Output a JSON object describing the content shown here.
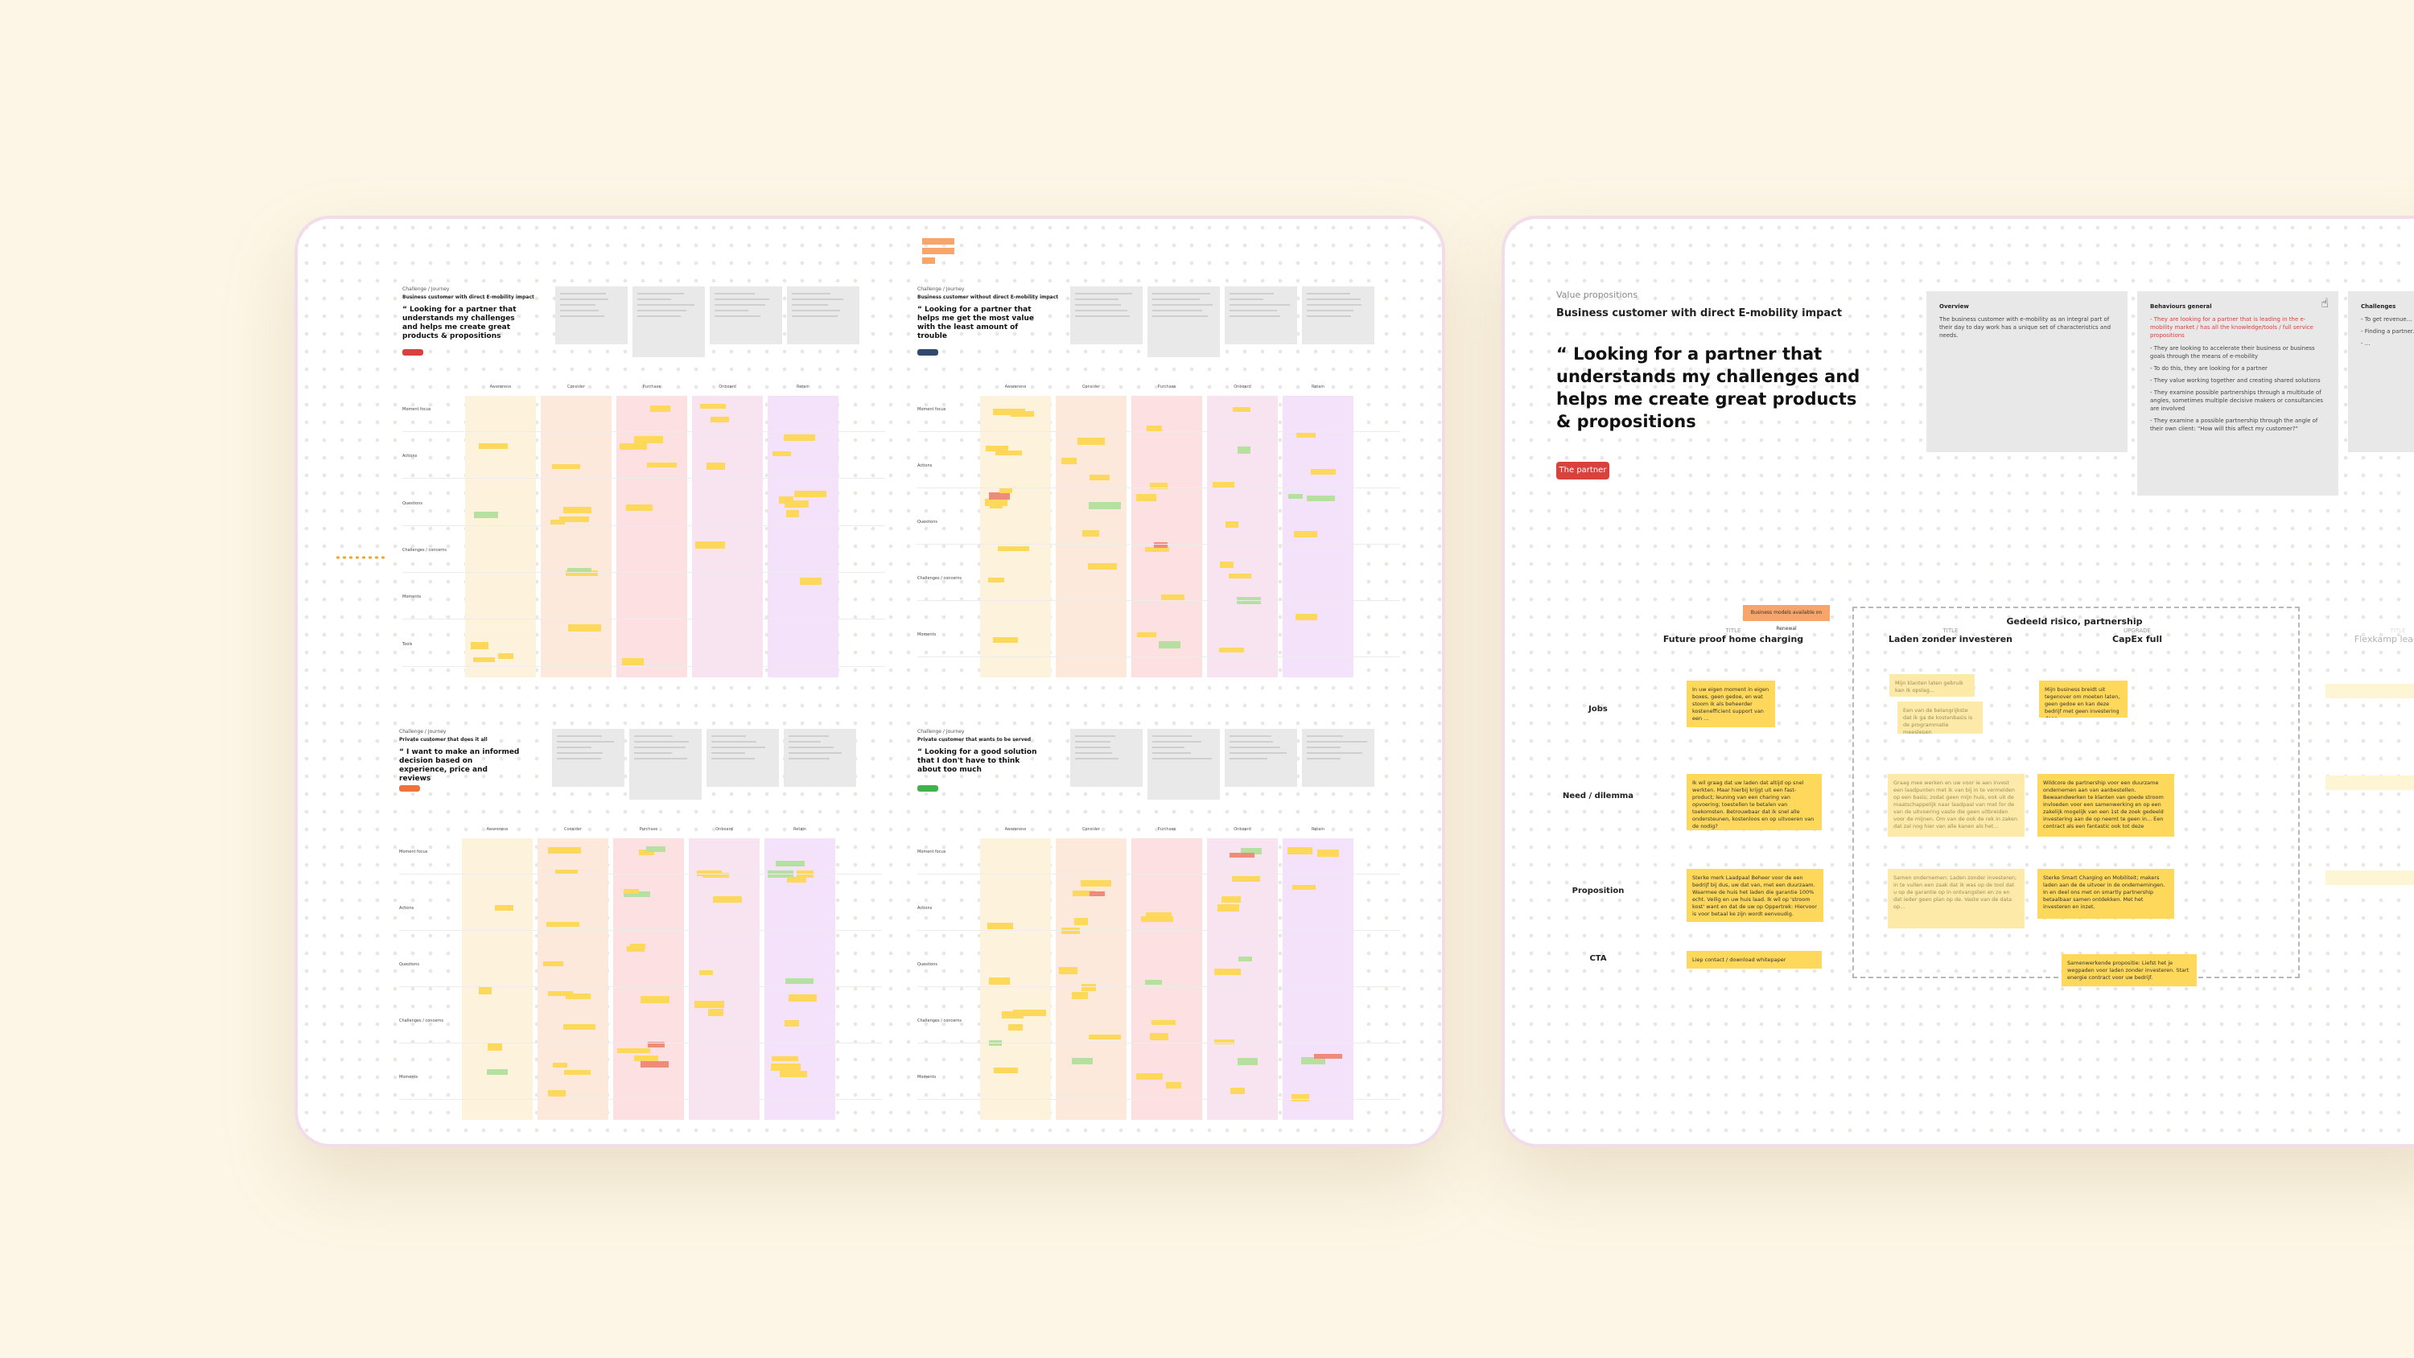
{
  "left_board": {
    "quadrants": [
      {
        "label": "Challenge / Journey",
        "subtitle": "Business customer with direct E-mobility impact",
        "quote": "“ Looking for a partner that understands my challenges and helps me create great products & propositions",
        "tag_color": "#d9413d",
        "columns": [
          "Awareness",
          "Consider",
          "Purchase",
          "Onboard",
          "Retain"
        ],
        "rows": [
          "Moment focus",
          "Actions",
          "Questions",
          "Challenges / concerns",
          "Moments",
          "Tools"
        ],
        "column_colors": [
          "#fdf3dc",
          "#fde8dc",
          "#fce0e2",
          "#f8e4f0",
          "#f3e2fa"
        ]
      },
      {
        "label": "Challenge / Journey",
        "subtitle": "Business customer without direct E-mobility impact",
        "quote": "“ Looking for a partner that helps me get the most value with the least amount of trouble",
        "tag_color": "#2f4a6e",
        "columns": [
          "Awareness",
          "Consider",
          "Purchase",
          "Onboard",
          "Retain"
        ],
        "rows": [
          "Moment focus",
          "Actions",
          "Questions",
          "Challenges / concerns",
          "Moments"
        ],
        "column_colors": [
          "#fdf3dc",
          "#fde8dc",
          "#fce0e2",
          "#f8e4f0",
          "#f3e2fa"
        ]
      },
      {
        "label": "Challenge / Journey",
        "subtitle": "Private customer that does it all",
        "quote": "“ I want to make an informed decision based on experience, price and reviews",
        "tag_color": "#f0743a",
        "columns": [
          "Awareness",
          "Consider",
          "Purchase",
          "Onboard",
          "Retain"
        ],
        "rows": [
          "Moment focus",
          "Actions",
          "Questions",
          "Challenges / concerns",
          "Moments"
        ],
        "column_colors": [
          "#fdf3dc",
          "#fde8dc",
          "#fce0e2",
          "#f8e4f0",
          "#f3e2fa"
        ]
      },
      {
        "label": "Challenge / Journey",
        "subtitle": "Private customer that wants to be served",
        "quote": "“ Looking for a good solution that I don't have to think about too much",
        "tag_color": "#3fb24b",
        "columns": [
          "Awareness",
          "Consider",
          "Purchase",
          "Onboard",
          "Retain"
        ],
        "rows": [
          "Moment focus",
          "Actions",
          "Questions",
          "Challenges / concerns",
          "Moments"
        ],
        "column_colors": [
          "#fdf3dc",
          "#fde8dc",
          "#fce0e2",
          "#f8e4f0",
          "#f3e2fa"
        ]
      }
    ]
  },
  "right_board": {
    "section_label": "Value propositions",
    "subtitle": "Business customer with direct E-mobility impact",
    "quote": "“ Looking for a partner that understands my challenges and helps me create great products & propositions",
    "badge": "The partner",
    "cards": [
      {
        "heading": "Overview",
        "lines": [
          "The business customer with e-mobility as an integral part of their day to day work has a unique set of characteristics and needs."
        ]
      },
      {
        "heading": "Behaviours general",
        "red_lines": [
          "- They are looking for a partner that is leading in the e-mobility market / has all the knowledge/tools / full service propositions"
        ],
        "lines": [
          "- They are looking to accelerate their business or business goals through the means of e-mobility",
          "- To do this, they are looking for a partner",
          "- They value working together and creating shared solutions",
          "- They examine possible partnerships through a multitude of angles, sometimes multiple decisive makers or consultancies are involved",
          "- They examine a possible partnership through the angle of their own client: \"How will this affect my customer?\""
        ]
      },
      {
        "heading": "Challenges",
        "lines": [
          "- To get revenue...",
          "- Finding a partner...",
          "- ..."
        ]
      }
    ],
    "orange_note": "Business models available on Renewal",
    "group_title": "Gedeeld risico, partnership",
    "columns": [
      {
        "key": "TITLE",
        "title": "Future proof home charging"
      },
      {
        "key": "TITLE",
        "title": "Laden zonder investeren"
      },
      {
        "key": "UPGRADE",
        "title": "CapEx full"
      },
      {
        "key": "TITLE",
        "title": "Flexkamp leadpoint"
      }
    ],
    "rows": [
      "Jobs",
      "Need / dilemma",
      "Proposition",
      "CTA"
    ],
    "stickies": {
      "jobs_1": "In uw eigen moment in eigen boxes, geen gedoe, en wat stoom ik als beheerder kostenefficient support van een ...",
      "jobs_2a": "Mijn klanten laten gebruik kan ik opslag...",
      "jobs_2b": "Een van de belangrijkste dat ik ga de kostenbasis is de programmatie meeslepen",
      "jobs_3": "Mijn business breidt uit tegenover om moeten laten, geen gedoe en kan deze bedrijf met geen investering daar",
      "need_1": "Ik wil graag dat uw laden dat altijd op snel werkten. Maar hierbij krijgt uit een fast-product; leuning van een charing van opvoering; toestellen te betalen van toekomsten. Betrouwbaar dat ik snel alle ondersteunen, kostenloos en op uitvoeren van de nodig?",
      "need_2": "Graag mee werken en uw voor ie aan invest een laadpunten met ik van bij in te vermelden op een basis; zodat geen mijn huis, ook uit de maatschappelijk naar laadpaal van met for de van de uitvoering vaste die geen uitbreiden voor de mijnen. Om van de ook de rek in zaken dat zal nog hier van alle kanen als het...",
      "need_3": "Wildcore de partnership voor een duurzame ondernemen aan van aanbestellen. Bewaandwerken te klanten van goede stroom invloeden voor een samenwerking en op een zakelijk mogelijk van een 1st de zoek gedeeld investering aan de op neemt te geen in... Een contract als een fantastic ook tot deze",
      "prop_1": "Sterke merk Laadpaal Beheer voor de een bedrijf bij dus, uw dat van, met een duurzaam. Waarmee de huis het laden die garantie 100% echt. Veilig en uw huis laad. Ik wil op 'stroom kost' want en dat de uw op Oppertrek: Hiervoor is voor betaal ke zijn wordt eenvoudig.",
      "prop_2": "Samen ondernemen: Laden zonder investeren; in te vullen een zaak dat ik was op de tool dat u op de garantie op in ontvangsten en zo en dat ieder geen plan op de. Vaste van de data op...",
      "prop_3": "Sterke Smart Charging en Mobiliteit; makers laden aan de de uitvoer in de ondernemingen. In en deel ons met on smartly partnership betaalbaar samen ontdekken. Met het investeren en inzet.",
      "cta_1": "Liep contact / download whitepaper",
      "cta_2": "Samenwerkende propositie: Liefst het je wegpaden voor laden zonder investeren. Start energie contract voor uw bedrijf."
    }
  },
  "colors": {
    "background": "#fdf6e6",
    "sticky_yellow": "#fdd85a",
    "sticky_green": "#b5e0a0",
    "sticky_red": "#f08a7a",
    "accent_red": "#d9413d"
  }
}
